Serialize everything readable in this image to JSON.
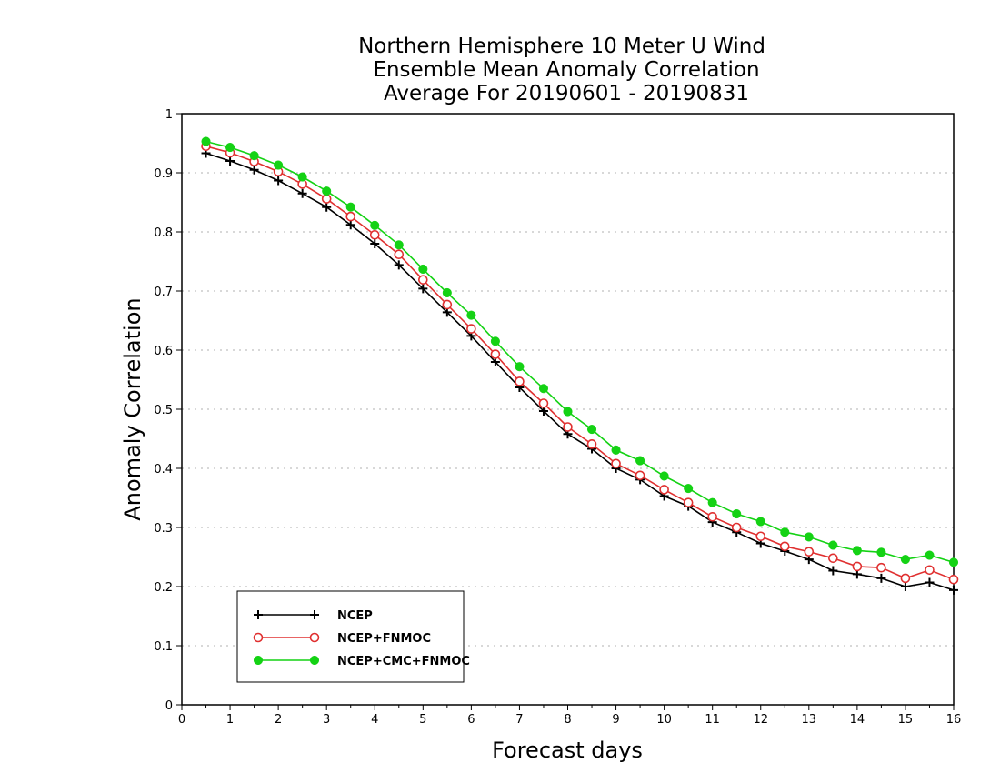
{
  "chart_data": {
    "type": "line",
    "title": [
      "Northern Hemisphere 10 Meter U Wind",
      "Ensemble Mean Anomaly Correlation",
      "Average For 20190601 - 20190831"
    ],
    "xlabel": "Forecast days",
    "ylabel": "Anomaly Correlation",
    "xlim": [
      0,
      16
    ],
    "ylim": [
      0,
      1
    ],
    "xticks": [
      0,
      1,
      2,
      3,
      4,
      5,
      6,
      7,
      8,
      9,
      10,
      11,
      12,
      13,
      14,
      15,
      16
    ],
    "xtick_labels": [
      "0",
      "1",
      "2",
      "3",
      "4",
      "5",
      "6",
      "7",
      "8",
      "9",
      "10",
      "11",
      "12",
      "13",
      "14",
      "15",
      "16"
    ],
    "yticks": [
      0,
      0.1,
      0.2,
      0.3,
      0.4,
      0.5,
      0.6,
      0.7,
      0.8,
      0.9,
      1
    ],
    "ytick_labels": [
      "0",
      "0.1",
      "0.2",
      "0.3",
      "0.4",
      "0.5",
      "0.6",
      "0.7",
      "0.8",
      "0.9",
      "1"
    ],
    "grid": "horizontal dotted",
    "legend_position": "bottom-left",
    "x": [
      0.5,
      1.0,
      1.5,
      2.0,
      2.5,
      3.0,
      3.5,
      4.0,
      4.5,
      5.0,
      5.5,
      6.0,
      6.5,
      7.0,
      7.5,
      8.0,
      8.5,
      9.0,
      9.5,
      10.0,
      10.5,
      11.0,
      11.5,
      12.0,
      12.5,
      13.0,
      13.5,
      14.0,
      14.5,
      15.0,
      15.5,
      16.0
    ],
    "series": [
      {
        "name": "NCEP",
        "color": "#000000",
        "marker": "plus",
        "values": [
          0.933,
          0.92,
          0.905,
          0.887,
          0.865,
          0.842,
          0.812,
          0.78,
          0.744,
          0.704,
          0.664,
          0.624,
          0.58,
          0.537,
          0.497,
          0.458,
          0.433,
          0.4,
          0.381,
          0.353,
          0.336,
          0.309,
          0.292,
          0.273,
          0.26,
          0.246,
          0.227,
          0.221,
          0.214,
          0.2,
          0.207,
          0.194
        ]
      },
      {
        "name": "NCEP+FNMOC",
        "color": "#e03030",
        "marker": "open-circle",
        "values": [
          0.945,
          0.934,
          0.919,
          0.902,
          0.881,
          0.856,
          0.826,
          0.795,
          0.762,
          0.719,
          0.677,
          0.636,
          0.593,
          0.547,
          0.51,
          0.47,
          0.441,
          0.408,
          0.388,
          0.364,
          0.342,
          0.318,
          0.3,
          0.285,
          0.268,
          0.259,
          0.248,
          0.234,
          0.232,
          0.214,
          0.228,
          0.212
        ]
      },
      {
        "name": "NCEP+CMC+FNMOC",
        "color": "#14d214",
        "marker": "filled-circle",
        "values": [
          0.953,
          0.943,
          0.929,
          0.913,
          0.893,
          0.869,
          0.842,
          0.811,
          0.778,
          0.737,
          0.697,
          0.659,
          0.615,
          0.572,
          0.535,
          0.496,
          0.466,
          0.431,
          0.413,
          0.387,
          0.366,
          0.342,
          0.323,
          0.31,
          0.292,
          0.284,
          0.27,
          0.261,
          0.258,
          0.246,
          0.253,
          0.241
        ]
      }
    ]
  }
}
